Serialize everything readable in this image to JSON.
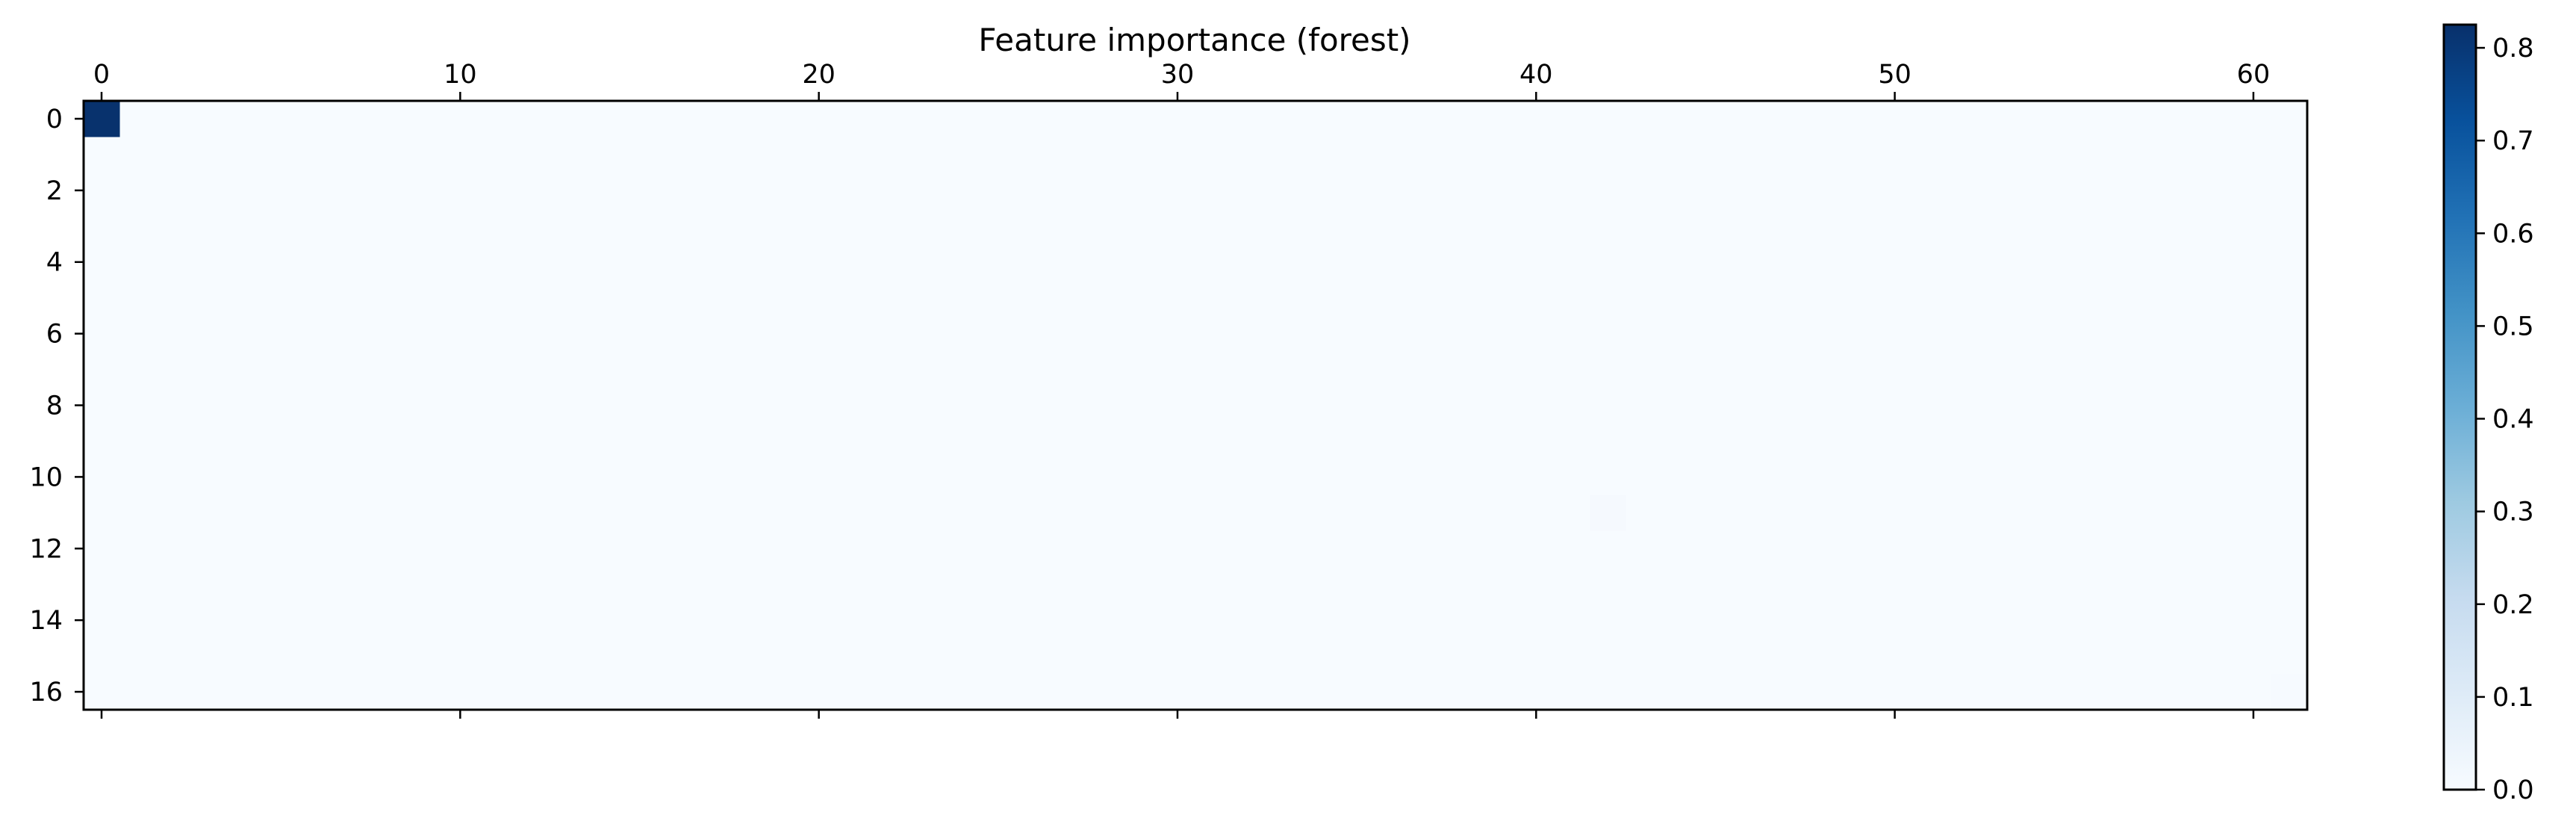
{
  "chart_data": {
    "type": "heatmap",
    "title": "Feature importance (forest)",
    "colormap": "Blues",
    "colormap_low": "#f7fbff",
    "colormap_high": "#08306b",
    "n_rows": 17,
    "n_cols": 62,
    "background_value": 0.0,
    "x_ticks": [
      0,
      10,
      20,
      30,
      40,
      50,
      60
    ],
    "x_tick_labels": [
      "0",
      "10",
      "20",
      "30",
      "40",
      "50",
      "60"
    ],
    "y_ticks": [
      0,
      2,
      4,
      6,
      8,
      10,
      12,
      14,
      16
    ],
    "y_tick_labels": [
      "0",
      "2",
      "4",
      "6",
      "8",
      "10",
      "12",
      "14",
      "16"
    ],
    "nonzero_cells": [
      {
        "row": 0,
        "col": 0,
        "value": 0.82
      },
      {
        "row": 11,
        "col": 42,
        "value": 0.01
      },
      {
        "row": 16,
        "col": 61,
        "value": 0.005
      }
    ],
    "colorbar": {
      "vmin": 0.0,
      "vmax": 0.825,
      "ticks": [
        0.0,
        0.1,
        0.2,
        0.3,
        0.4,
        0.5,
        0.6,
        0.7,
        0.8
      ],
      "tick_labels": [
        "0.0",
        "0.1",
        "0.2",
        "0.3",
        "0.4",
        "0.5",
        "0.6",
        "0.7",
        "0.8"
      ]
    }
  }
}
